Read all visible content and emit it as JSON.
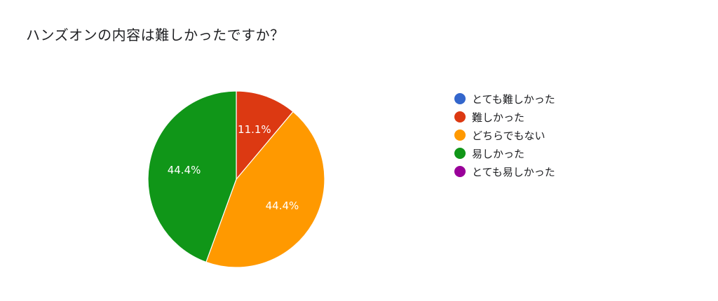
{
  "chart_data": {
    "type": "pie",
    "title": "ハンズオンの内容は難しかったですか？",
    "categories": [
      "とても難しかった",
      "難しかった",
      "どちらでもない",
      "易しかった",
      "とても易しかった"
    ],
    "values": [
      0,
      1,
      4,
      4,
      0
    ],
    "percent_labels": [
      "",
      "11.1%",
      "44.4%",
      "44.4%",
      ""
    ],
    "colors": [
      "#3366cc",
      "#dc3912",
      "#ff9900",
      "#109618",
      "#990099"
    ],
    "start_angle_deg": 90,
    "direction": "clockwise",
    "legend_position": "right"
  }
}
